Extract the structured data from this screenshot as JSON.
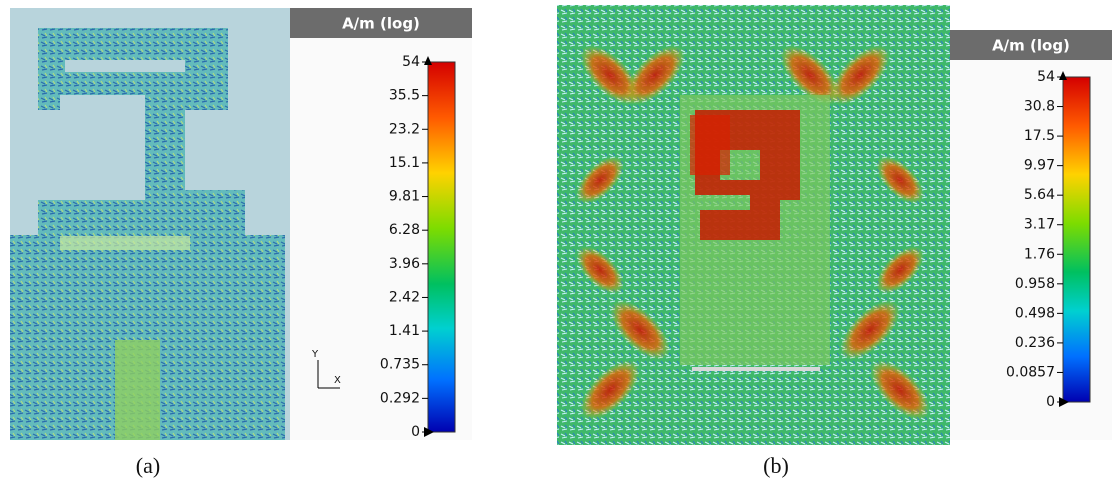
{
  "panels": [
    {
      "caption": "(a)",
      "axes": {
        "y": "Y",
        "x": "X"
      },
      "legend": {
        "unit": "A/m (log)",
        "ticks": [
          "54",
          "35.5",
          "23.2",
          "15.1",
          "9.81",
          "6.28",
          "3.96",
          "2.42",
          "1.41",
          "0.735",
          "0.292",
          "0"
        ]
      }
    },
    {
      "caption": "(b)",
      "legend": {
        "unit": "A/m (log)",
        "ticks": [
          "54",
          "30.8",
          "17.5",
          "9.97",
          "5.64",
          "3.17",
          "1.76",
          "0.958",
          "0.498",
          "0.236",
          "0.0857",
          "0"
        ]
      }
    }
  ]
}
